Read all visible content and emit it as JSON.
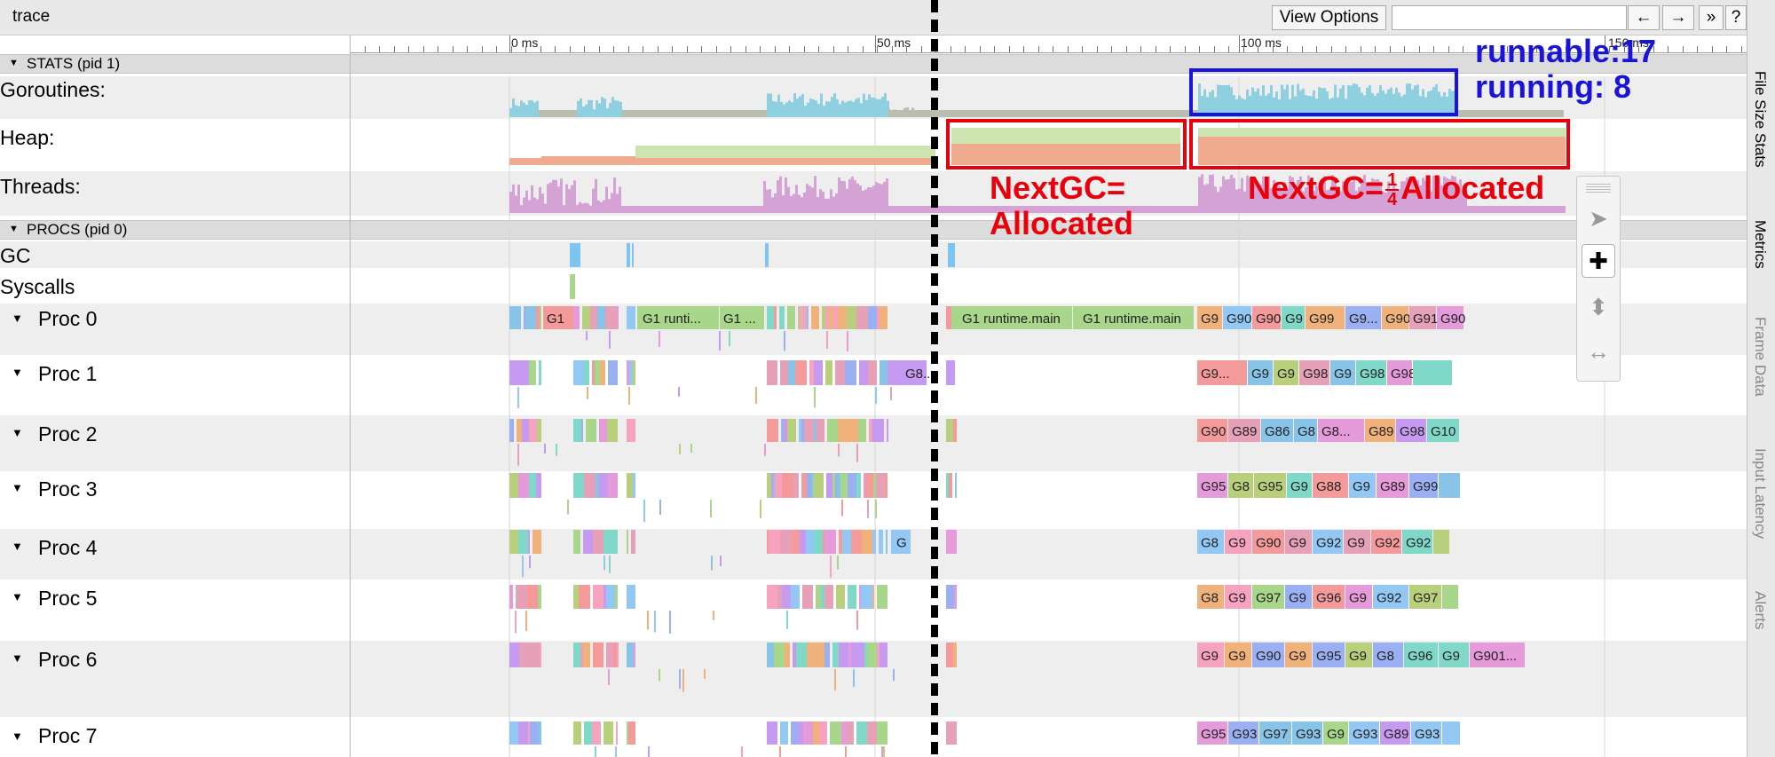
{
  "toolbar": {
    "title": "trace",
    "view_options": "View Options",
    "back": "←",
    "forward": "→",
    "more": "»",
    "help": "?"
  },
  "ruler": {
    "labels": [
      "0 ms",
      "50 ms",
      "100 ms",
      "150 ms"
    ]
  },
  "stats_section": {
    "header": "STATS (pid 1)",
    "rows": [
      "Goroutines:",
      "Heap:",
      "Threads:"
    ]
  },
  "procs_section": {
    "header": "PROCS (pid 0)",
    "gc_label": "GC",
    "syscalls_label": "Syscalls",
    "procs": [
      "Proc 0",
      "Proc 1",
      "Proc 2",
      "Proc 3",
      "Proc 4",
      "Proc 5",
      "Proc 6",
      "Proc 7"
    ]
  },
  "slices": {
    "p0": [
      "G1",
      "G1 runti...",
      "G1 ...",
      "G1 runtime.main",
      "G1 runtime.main",
      "G9",
      "G90",
      "G90",
      "G9",
      "G99",
      "G9...",
      "G90",
      "G91",
      "G90"
    ],
    "p1": [
      "G8...",
      "G9...",
      "G9",
      "G9",
      "G98",
      "G9",
      "G98",
      "G98"
    ],
    "p2": [
      "G90",
      "G89",
      "G86",
      "G8",
      "G8...",
      "G89",
      "G98",
      "G10"
    ],
    "p3": [
      "G95",
      "G8",
      "G95",
      "G9",
      "G88",
      "G9",
      "G89",
      "G99"
    ],
    "p4": [
      "G",
      "G8",
      "G9",
      "G90",
      "G9",
      "G92",
      "G9",
      "G92",
      "G92"
    ],
    "p5": [
      "G8",
      "G9",
      "G97",
      "G9",
      "G96",
      "G9",
      "G92",
      "G97"
    ],
    "p6": [
      "G9",
      "G9",
      "G90",
      "G9",
      "G95",
      "G9",
      "G8",
      "G96",
      "G9",
      "G901..."
    ],
    "p7": [
      "G95",
      "G93",
      "G97",
      "G93",
      "G9",
      "G93",
      "G89",
      "G93"
    ]
  },
  "side_tabs": [
    "File Size Stats",
    "Metrics",
    "Frame Data",
    "Input Latency",
    "Alerts"
  ],
  "annotations": {
    "runnable": "runnable:17",
    "running": "running: 8",
    "nextgc_eq": "NextGC=",
    "allocated": "Allocated",
    "nextgc_quarter_prefix": "NextGC=",
    "frac_num": "1",
    "frac_den": "4",
    "nextgc_quarter_suffix": "Allocated"
  },
  "colors": {
    "goroutines": "#8ecfe0",
    "goroutines_gray": "#b8bfb0",
    "heap_green": "#cde3b0",
    "heap_orange": "#eeab8e",
    "threads": "#d4a2d4",
    "gc": "#7cc4f2",
    "syscalls": "#a8d68a",
    "annotation_red": "#e8000a",
    "annotation_blue": "#1a14d8"
  },
  "tools": [
    "pointer-tool",
    "pan-tool",
    "zoom-tool",
    "timing-tool"
  ]
}
